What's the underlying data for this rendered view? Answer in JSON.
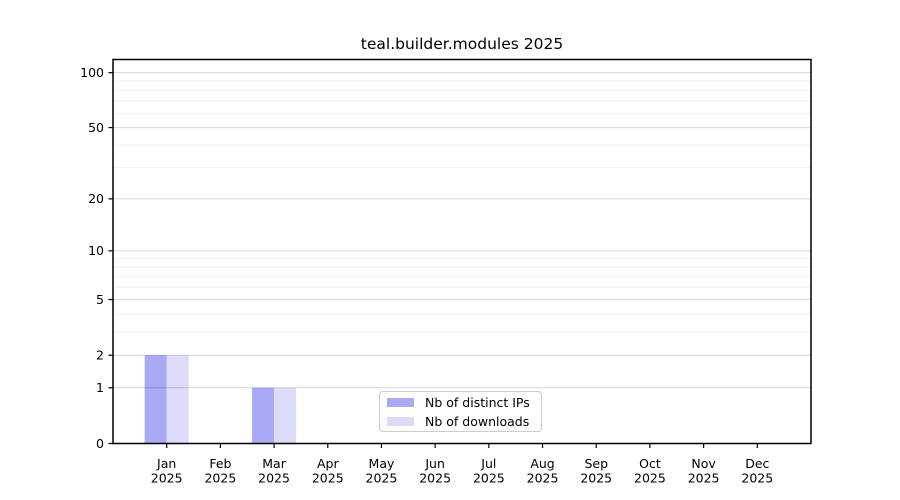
{
  "title": "teal.builder.modules 2025",
  "chart_data": {
    "type": "bar",
    "title": "teal.builder.modules 2025",
    "categories": [
      "Jan",
      "Feb",
      "Mar",
      "Apr",
      "May",
      "Jun",
      "Jul",
      "Aug",
      "Sep",
      "Oct",
      "Nov",
      "Dec"
    ],
    "x_tick_year": "2025",
    "series": [
      {
        "name": "Nb of distinct IPs",
        "color": "#a9a9f6",
        "values": [
          2,
          0,
          1,
          0,
          0,
          0,
          0,
          0,
          0,
          0,
          0,
          0
        ]
      },
      {
        "name": "Nb of downloads",
        "color": "#dcdcf8",
        "values": [
          2,
          0,
          1,
          0,
          0,
          0,
          0,
          0,
          0,
          0,
          0,
          0
        ]
      }
    ],
    "xlabel": "",
    "ylabel": "",
    "yscale": "log1p",
    "ylim": [
      0,
      118
    ],
    "yticks": [
      0,
      1,
      2,
      5,
      10,
      20,
      50,
      100
    ],
    "minor_yticks": [
      3,
      4,
      6,
      7,
      8,
      9,
      30,
      40,
      60,
      70,
      80,
      90
    ],
    "grid": true,
    "legend_position": "inside-bottom-center"
  },
  "colors": {
    "background": "#ffffff",
    "axis": "#000000",
    "major_grid": "rgba(0,0,0,0.16)",
    "minor_grid": "rgba(0,0,0,0.055)",
    "legend_border": "#cccccc",
    "tick_label": "#000000"
  }
}
